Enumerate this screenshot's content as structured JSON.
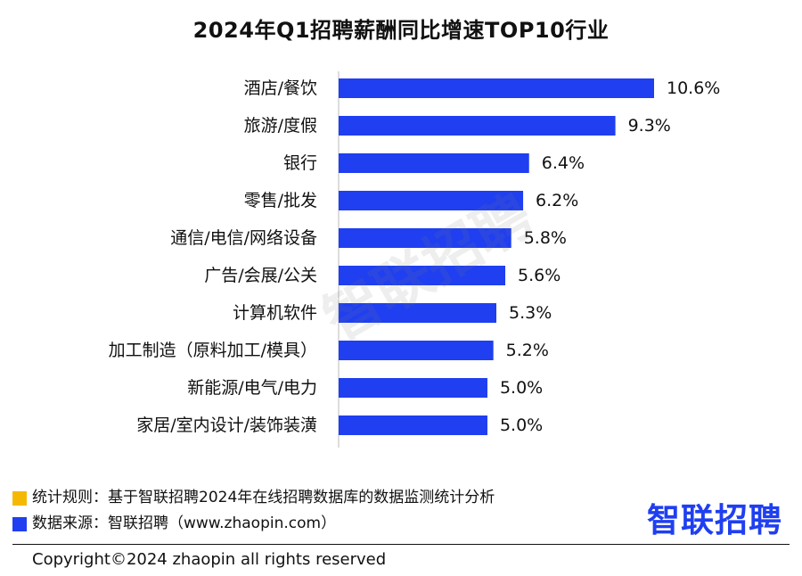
{
  "chart_data": {
    "type": "bar",
    "orientation": "horizontal",
    "title": "2024年Q1招聘薪酬同比增速TOP10行业",
    "categories": [
      "酒店/餐饮",
      "旅游/度假",
      "银行",
      "零售/批发",
      "通信/电信/网络设备",
      "广告/会展/公关",
      "计算机软件",
      "加工制造（原料加工/模具）",
      "新能源/电气/电力",
      "家居/室内设计/装饰装潢"
    ],
    "values": [
      10.6,
      9.3,
      6.4,
      6.2,
      5.8,
      5.6,
      5.3,
      5.2,
      5.0,
      5.0
    ],
    "value_labels": [
      "10.6%",
      "9.3%",
      "6.4%",
      "6.2%",
      "5.8%",
      "5.6%",
      "5.3%",
      "5.2%",
      "5.0%",
      "5.0%"
    ],
    "xlim": [
      0,
      10.6
    ],
    "bar_color": "#1f3ff0",
    "grid": false
  },
  "watermark": "智联招聘",
  "notes": {
    "rule_text": "统计规则：基于智联招聘2024年在线招聘数据库的数据监测统计分析",
    "rule_color": "#f5b800",
    "source_text": "数据来源：智联招聘（www.zhaopin.com）",
    "source_color": "#1f3ff0"
  },
  "brand": {
    "logo_text": "智联招聘",
    "color": "#1f3ff0"
  },
  "footer": {
    "copyright": "Copyright©2024 zhaopin all rights reserved"
  }
}
